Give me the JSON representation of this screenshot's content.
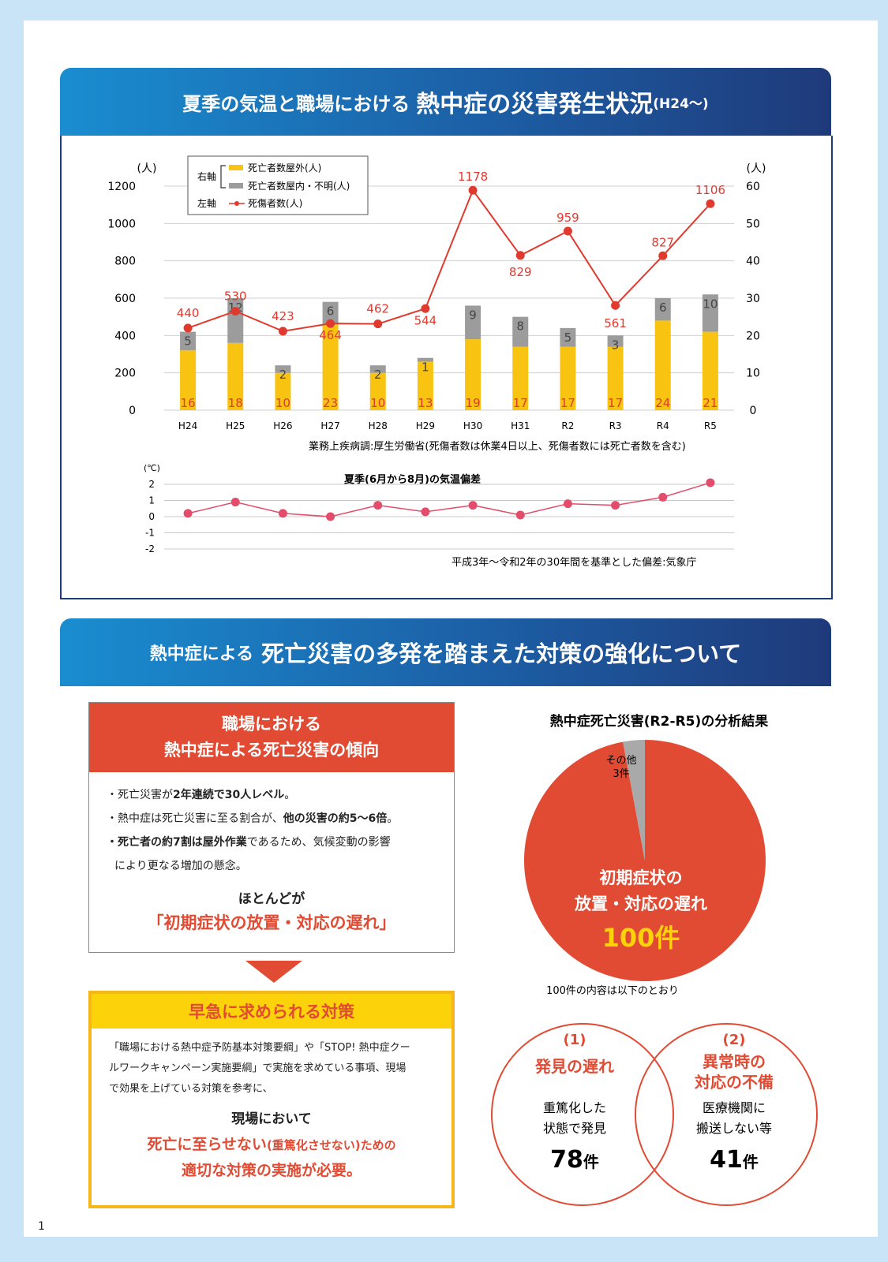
{
  "band1": {
    "part_a": "夏季の気温と職場における",
    "part_b": "熱中症の災害発生状況",
    "part_c": "(H24〜)"
  },
  "band2": {
    "part_a": "熱中症による",
    "part_b": "死亡災害の多発を踏まえた対策の強化について"
  },
  "chart_data": [
    {
      "type": "bar+line",
      "categories": [
        "H24",
        "H25",
        "H26",
        "H27",
        "H28",
        "H29",
        "H30",
        "H31",
        "R2",
        "R3",
        "R4",
        "R5"
      ],
      "left_unit": "(人)",
      "right_unit": "(人)",
      "left_ylim": [
        0,
        1200
      ],
      "left_ticks": [
        "0",
        "200",
        "400",
        "600",
        "800",
        "1000",
        "1200"
      ],
      "right_ylim": [
        0,
        60
      ],
      "right_ticks": [
        "0",
        "10",
        "20",
        "30",
        "40",
        "50",
        "60"
      ],
      "legend": {
        "right_axis_label": "右軸",
        "left_axis_label": "左軸"
      },
      "series": [
        {
          "name": "死亡者数屋外(人)",
          "axis": "right",
          "kind": "bar",
          "color": "#f9c311",
          "values": [
            16,
            18,
            10,
            23,
            10,
            13,
            19,
            17,
            17,
            17,
            24,
            21
          ]
        },
        {
          "name": "死亡者数屋内・不明(人)",
          "axis": "right",
          "kind": "bar",
          "color": "#9c9c9c",
          "values": [
            5,
            12,
            2,
            6,
            2,
            1,
            9,
            8,
            5,
            3,
            6,
            10
          ]
        },
        {
          "name": "死傷者数(人)",
          "axis": "left",
          "kind": "line",
          "color": "#e03a2f",
          "values": [
            440,
            530,
            423,
            464,
            462,
            544,
            1178,
            829,
            959,
            561,
            827,
            1106
          ]
        }
      ],
      "source": "業務上疾病調:厚生労働省(死傷者数は休業4日以上、死傷者数には死亡者数を含む)"
    },
    {
      "type": "line",
      "title": "夏季(6月から8月)の気温偏差",
      "unit": "(℃)",
      "ylim": [
        -2,
        2
      ],
      "ticks": [
        "-2",
        "-1",
        "0",
        "1",
        "2"
      ],
      "categories": [
        "H24",
        "H25",
        "H26",
        "H27",
        "H28",
        "H29",
        "H30",
        "H31",
        "R2",
        "R3",
        "R4",
        "R5"
      ],
      "values": [
        0.2,
        0.9,
        0.2,
        0.0,
        0.7,
        0.3,
        0.7,
        0.1,
        0.8,
        0.7,
        1.2,
        2.1
      ],
      "color": "#e34c6a",
      "source": "平成3年〜令和2年の30年間を基準とした偏差:気象庁"
    },
    {
      "type": "pie",
      "title": "熱中症死亡災害(R2-R5)の分析結果",
      "slices": [
        {
          "name": "初期症状の放置・対応の遅れ",
          "value": 100,
          "label_1": "初期症状の",
          "label_2": "放置・対応の遅れ",
          "count": "100件",
          "color": "#e24b33"
        },
        {
          "name": "その他",
          "value": 3,
          "label_1": "その他",
          "count": "3件",
          "color": "#a9a9a9"
        }
      ]
    }
  ],
  "trend_box": {
    "title_1": "職場における",
    "title_2": "熱中症による死亡災害の傾向",
    "b1_pre": "・死亡災害が",
    "b1_bold": "2年連続で30人レベル",
    "b1_post": "。",
    "b2_pre": "・熱中症は死亡災害に至る割合が、",
    "b2_bold": "他の災害の約5〜6倍",
    "b2_post": "。",
    "b3_bold": "・死亡者の約7割は屋外作業",
    "b3_post": "であるため、気候変動の影響",
    "b4": "により更なる増加の懸念。",
    "conclusion_1": "ほとんどが",
    "conclusion_2": "「初期症状の放置・対応の遅れ」"
  },
  "measure_box": {
    "title": "早急に求められる対策",
    "desc_1": "「職場における熱中症予防基本対策要綱」や「STOP! 熱中症クー",
    "desc_2": "ルワークキャンペーン実施要綱」で実施を求めている事項、現場",
    "desc_3": "で効果を上げている対策を参考に、",
    "call_1": "現場において",
    "call_2a": "死亡に至らせない",
    "call_2b": "(重篤化させない)",
    "call_2c": "ための",
    "call_3": "適切な対策の実施が必要。"
  },
  "breakdown": {
    "intro": "100件の内容は以下のとおり",
    "c1": {
      "num": "(1)",
      "title": "発見の遅れ",
      "desc_1": "重篤化した",
      "desc_2": "状態で発見",
      "count": "78",
      "unit": "件"
    },
    "c2": {
      "num": "(2)",
      "title_1": "異常時の",
      "title_2": "対応の不備",
      "desc_1": "医療機関に",
      "desc_2": "搬送しない等",
      "count": "41",
      "unit": "件"
    }
  },
  "page_number": "1"
}
